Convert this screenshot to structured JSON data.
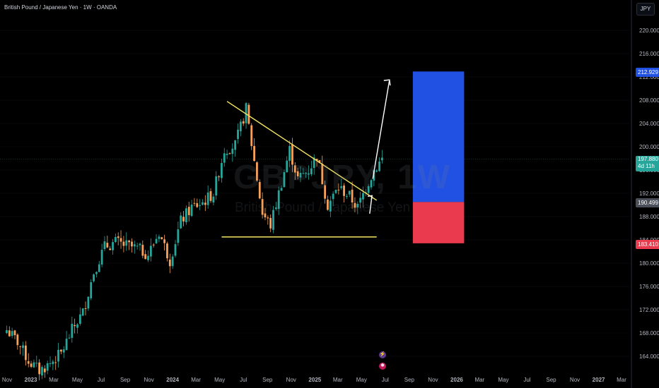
{
  "header": {
    "title": "British Pound / Japanese Yen · 1W · OANDA",
    "currency_button": "JPY"
  },
  "watermark": {
    "symbol": "GBPJPY, 1W",
    "description": "British Pound / Japanese Yen"
  },
  "price_tags": {
    "target": "212.929",
    "current": "197.880",
    "countdown": "4d 11h",
    "entry": "190.499",
    "stop": "183.410"
  },
  "colors": {
    "up": "#26a69a",
    "down": "#f7a15a",
    "trendline": "#f5e663",
    "arrow": "#ffffff",
    "target_zone": "#2151e3",
    "stop_zone": "#ea3a4d",
    "background": "#000000",
    "grid": "#2a2e39"
  },
  "chart_data": {
    "type": "candlestick",
    "symbol": "GBPJPY",
    "timeframe": "1W",
    "broker": "OANDA",
    "y_axis": {
      "ticks": [
        164.0,
        168.0,
        172.0,
        176.0,
        180.0,
        184.0,
        188.0,
        192.0,
        196.0,
        200.0,
        204.0,
        208.0,
        212.0,
        216.0,
        220.0
      ],
      "ylim": [
        162.5,
        222.5
      ]
    },
    "x_axis": {
      "ticks": [
        "Nov",
        "2023",
        "Mar",
        "May",
        "Jul",
        "Sep",
        "Nov",
        "2024",
        "Mar",
        "May",
        "Jul",
        "Sep",
        "Nov",
        "2025",
        "Mar",
        "May",
        "Jul",
        "Sep",
        "Nov",
        "2026",
        "Mar",
        "May",
        "Jul",
        "Sep",
        "Nov",
        "2027",
        "Mar"
      ]
    },
    "series_points": [
      [
        "2022-10-31",
        168.5
      ],
      [
        "2022-11-28",
        166.5
      ],
      [
        "2022-12-26",
        163.2
      ],
      [
        "2023-01-23",
        161.5
      ],
      [
        "2023-02-20",
        162.8
      ],
      [
        "2023-03-20",
        164.5
      ],
      [
        "2023-04-17",
        168.5
      ],
      [
        "2023-05-15",
        171.5
      ],
      [
        "2023-06-12",
        178.5
      ],
      [
        "2023-07-10",
        182.8
      ],
      [
        "2023-08-07",
        183.6
      ],
      [
        "2023-09-04",
        183.0
      ],
      [
        "2023-10-02",
        182.5
      ],
      [
        "2023-10-30",
        181.5
      ],
      [
        "2023-11-27",
        185.3
      ],
      [
        "2023-12-25",
        180.5
      ],
      [
        "2024-01-22",
        187.2
      ],
      [
        "2024-02-19",
        189.6
      ],
      [
        "2024-03-18",
        190.4
      ],
      [
        "2024-04-15",
        192.0
      ],
      [
        "2024-05-13",
        199.5
      ],
      [
        "2024-06-10",
        200.3
      ],
      [
        "2024-07-08",
        206.5
      ],
      [
        "2024-07-29",
        197.5
      ],
      [
        "2024-08-19",
        188.5
      ],
      [
        "2024-09-09",
        186.5
      ],
      [
        "2024-09-30",
        192.0
      ],
      [
        "2024-10-28",
        199.5
      ],
      [
        "2024-11-18",
        194.5
      ],
      [
        "2024-12-16",
        196.0
      ],
      [
        "2025-01-06",
        198.5
      ],
      [
        "2025-02-03",
        190.0
      ],
      [
        "2025-03-03",
        193.0
      ],
      [
        "2025-03-31",
        191.5
      ],
      [
        "2025-04-21",
        189.5
      ],
      [
        "2025-05-12",
        193.0
      ],
      [
        "2025-06-02",
        196.0
      ],
      [
        "2025-06-23",
        197.9
      ]
    ],
    "key_levels": {
      "current": 197.88,
      "entry": 190.499,
      "target": 212.929,
      "stop": 183.41,
      "support_line": 184.5
    }
  }
}
